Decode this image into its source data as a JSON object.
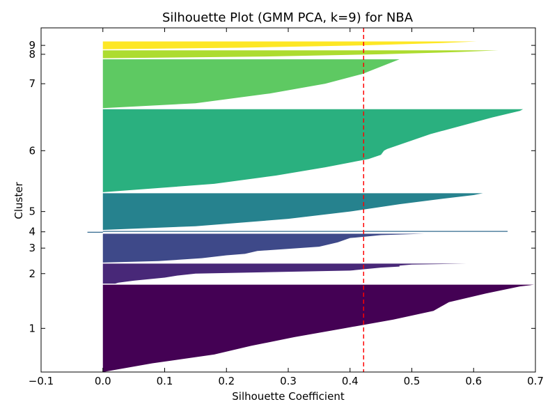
{
  "chart_data": {
    "type": "area",
    "title": "Silhouette Plot (GMM PCA, k=9) for NBA",
    "xlabel": "Silhouette Coefficient",
    "ylabel": "Cluster",
    "xlim": [
      -0.1,
      0.7
    ],
    "x_ticks": [
      "−0.1",
      "0.0",
      "0.1",
      "0.2",
      "0.3",
      "0.4",
      "0.5",
      "0.6",
      "0.7"
    ],
    "x_tick_values": [
      -0.1,
      0.0,
      0.1,
      0.2,
      0.3,
      0.4,
      0.5,
      0.6,
      0.7
    ],
    "average_silhouette": 0.422,
    "average_line_color": "#ff0000",
    "grid": false,
    "clusters": [
      {
        "label": "1",
        "size": 100,
        "color": "#440154",
        "profile": [
          [
            0,
            0.698
          ],
          [
            0.02,
            0.675
          ],
          [
            0.1,
            0.62
          ],
          [
            0.2,
            0.56
          ],
          [
            0.3,
            0.535
          ],
          [
            0.4,
            0.47
          ],
          [
            0.5,
            0.39
          ],
          [
            0.6,
            0.31
          ],
          [
            0.7,
            0.24
          ],
          [
            0.8,
            0.18
          ],
          [
            0.9,
            0.08
          ],
          [
            1,
            0.0
          ]
        ]
      },
      {
        "label": "2",
        "size": 23,
        "color": "#482878",
        "profile": [
          [
            0,
            0.588
          ],
          [
            0.05,
            0.5
          ],
          [
            0.1,
            0.48
          ],
          [
            0.15,
            0.48
          ],
          [
            0.2,
            0.45
          ],
          [
            0.35,
            0.4
          ],
          [
            0.5,
            0.15
          ],
          [
            0.6,
            0.12
          ],
          [
            0.7,
            0.1
          ],
          [
            0.85,
            0.05
          ],
          [
            0.95,
            0.025
          ],
          [
            1,
            0.02
          ]
        ]
      },
      {
        "label": "3",
        "size": 33,
        "color": "#3e4989",
        "profile": [
          [
            0,
            0.52
          ],
          [
            0.05,
            0.45
          ],
          [
            0.15,
            0.4
          ],
          [
            0.3,
            0.38
          ],
          [
            0.45,
            0.35
          ],
          [
            0.6,
            0.25
          ],
          [
            0.7,
            0.23
          ],
          [
            0.75,
            0.2
          ],
          [
            0.85,
            0.16
          ],
          [
            0.95,
            0.09
          ],
          [
            1,
            0.0
          ]
        ]
      },
      {
        "label": "4",
        "size": 2,
        "color": "#31688e",
        "profile": [
          [
            0,
            0.655
          ],
          [
            0.5,
            0.655
          ],
          [
            0.5,
            -0.025
          ],
          [
            1,
            -0.025
          ]
        ]
      },
      {
        "label": "5",
        "size": 42,
        "color": "#26828e",
        "profile": [
          [
            0,
            0.615
          ],
          [
            0.05,
            0.6
          ],
          [
            0.15,
            0.55
          ],
          [
            0.3,
            0.48
          ],
          [
            0.5,
            0.4
          ],
          [
            0.7,
            0.3
          ],
          [
            0.9,
            0.15
          ],
          [
            1,
            0.0
          ]
        ]
      },
      {
        "label": "6",
        "size": 95,
        "color": "#2ab07f",
        "profile": [
          [
            0,
            0.68
          ],
          [
            0.02,
            0.675
          ],
          [
            0.1,
            0.63
          ],
          [
            0.3,
            0.53
          ],
          [
            0.48,
            0.46
          ],
          [
            0.5,
            0.455
          ],
          [
            0.55,
            0.45
          ],
          [
            0.6,
            0.43
          ],
          [
            0.7,
            0.36
          ],
          [
            0.8,
            0.28
          ],
          [
            0.9,
            0.18
          ],
          [
            1,
            0.0
          ]
        ]
      },
      {
        "label": "7",
        "size": 56,
        "color": "#5ec962",
        "profile": [
          [
            0,
            0.48
          ],
          [
            0.05,
            0.47
          ],
          [
            0.1,
            0.46
          ],
          [
            0.3,
            0.42
          ],
          [
            0.5,
            0.36
          ],
          [
            0.7,
            0.27
          ],
          [
            0.9,
            0.15
          ],
          [
            1,
            0.0
          ]
        ]
      },
      {
        "label": "8",
        "size": 9,
        "color": "#addc30",
        "profile": [
          [
            0,
            0.64
          ],
          [
            0.2,
            0.58
          ],
          [
            0.5,
            0.45
          ],
          [
            0.8,
            0.25
          ],
          [
            1,
            0.0
          ]
        ]
      },
      {
        "label": "9",
        "size": 9,
        "color": "#fde725",
        "profile": [
          [
            0,
            0.605
          ],
          [
            0.2,
            0.55
          ],
          [
            0.5,
            0.42
          ],
          [
            0.8,
            0.22
          ],
          [
            1,
            0.0
          ]
        ]
      }
    ]
  }
}
